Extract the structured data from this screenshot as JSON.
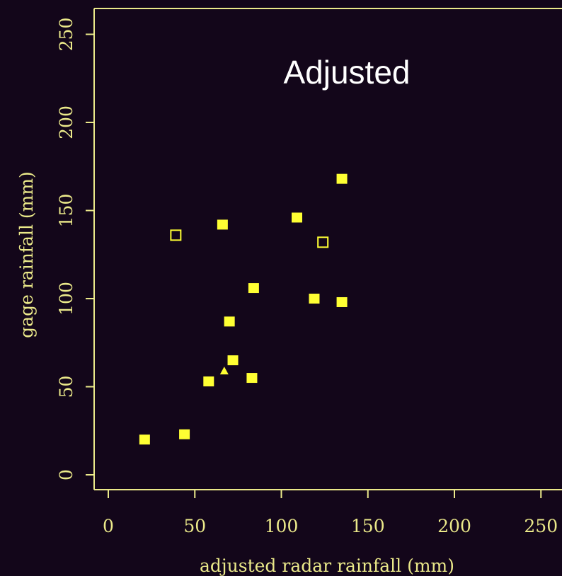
{
  "chart_data": {
    "type": "scatter",
    "title": "Adjusted",
    "xlabel": "adjusted radar rainfall (mm)",
    "ylabel": "gage rainfall (mm)",
    "xlim": [
      0,
      250
    ],
    "ylim": [
      0,
      250
    ],
    "xticks": [
      "0",
      "50",
      "100",
      "150",
      "200",
      "250"
    ],
    "yticks": [
      "0",
      "50",
      "100",
      "150",
      "200",
      "250"
    ],
    "grid": false,
    "legend": "none",
    "colors": {
      "background": "#13061a",
      "axis": "#ebe98a",
      "marker": "#ffff33",
      "title": "#ffffff"
    },
    "series": [
      {
        "marker": "filled-square",
        "points": [
          {
            "x": 21,
            "y": 20
          },
          {
            "x": 44,
            "y": 23
          },
          {
            "x": 58,
            "y": 53
          },
          {
            "x": 66,
            "y": 142
          },
          {
            "x": 70,
            "y": 87
          },
          {
            "x": 72,
            "y": 65
          },
          {
            "x": 83,
            "y": 55
          },
          {
            "x": 84,
            "y": 106
          },
          {
            "x": 109,
            "y": 146
          },
          {
            "x": 119,
            "y": 100
          },
          {
            "x": 135,
            "y": 98
          },
          {
            "x": 135,
            "y": 168
          }
        ]
      },
      {
        "marker": "open-square",
        "points": [
          {
            "x": 39,
            "y": 136
          },
          {
            "x": 124,
            "y": 132
          }
        ]
      },
      {
        "marker": "filled-triangle",
        "points": [
          {
            "x": 67,
            "y": 59
          }
        ]
      }
    ]
  }
}
